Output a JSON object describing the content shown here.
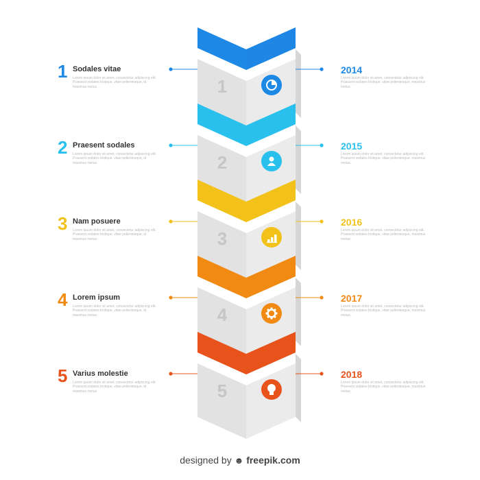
{
  "colors": {
    "step1": "#1e88e5",
    "step2": "#29c0ee",
    "step3": "#f2c21b",
    "step4": "#f08a12",
    "step5": "#e8531c",
    "block_face": "#ebebeb",
    "block_shade": "#d6d6d6",
    "number_gray": "#c6c6c6"
  },
  "steps": [
    {
      "number": "1",
      "title": "Sodales vitae",
      "year": "2014",
      "block_label": "1",
      "icon": "pie-chart-icon",
      "desc": "Lorem ipsum dolor sit amet, consectetur adipiscing elit. Praesent sodales tristique, vitae pellentesque, id maximus metus.",
      "year_desc": "Lorem ipsum dolor sit amet, consectetur adipiscing elit. Praesent sodales tristique, vitae pellentesque, maximus metus."
    },
    {
      "number": "2",
      "title": "Praesent sodales",
      "year": "2015",
      "block_label": "2",
      "icon": "user-icon",
      "desc": "Lorem ipsum dolor sit amet, consectetur adipiscing elit. Praesent sodales tristique, vitae pellentesque, id maximus metus.",
      "year_desc": "Lorem ipsum dolor sit amet, consectetur adipiscing elit. Praesent sodales tristique, vitae pellentesque, maximus metus."
    },
    {
      "number": "3",
      "title": "Nam posuere",
      "year": "2016",
      "block_label": "3",
      "icon": "bar-chart-icon",
      "desc": "Lorem ipsum dolor sit amet, consectetur adipiscing elit. Praesent sodales tristique, vitae pellentesque, id maximus metus.",
      "year_desc": "Lorem ipsum dolor sit amet, consectetur adipiscing elit. Praesent sodales tristique, vitae pellentesque, maximus metus."
    },
    {
      "number": "4",
      "title": "Lorem ipsum",
      "year": "2017",
      "block_label": "4",
      "icon": "gear-icon",
      "desc": "Lorem ipsum dolor sit amet, consectetur adipiscing elit. Praesent sodales tristique, vitae pellentesque, id maximus metus.",
      "year_desc": "Lorem ipsum dolor sit amet, consectetur adipiscing elit. Praesent sodales tristique, vitae pellentesque, maximus metus."
    },
    {
      "number": "5",
      "title": "Varius molestie",
      "year": "2018",
      "block_label": "5",
      "icon": "lightbulb-icon",
      "desc": "Lorem ipsum dolor sit amet, consectetur adipiscing elit. Praesent sodales tristique, vitae pellentesque, id maximus metus.",
      "year_desc": "Lorem ipsum dolor sit amet, consectetur adipiscing elit. Praesent sodales tristique, vitae pellentesque, maximus metus."
    }
  ],
  "footer": {
    "prefix": "designed by",
    "logo_icon": "freepik-logo-icon",
    "brand": "freepik.com"
  }
}
